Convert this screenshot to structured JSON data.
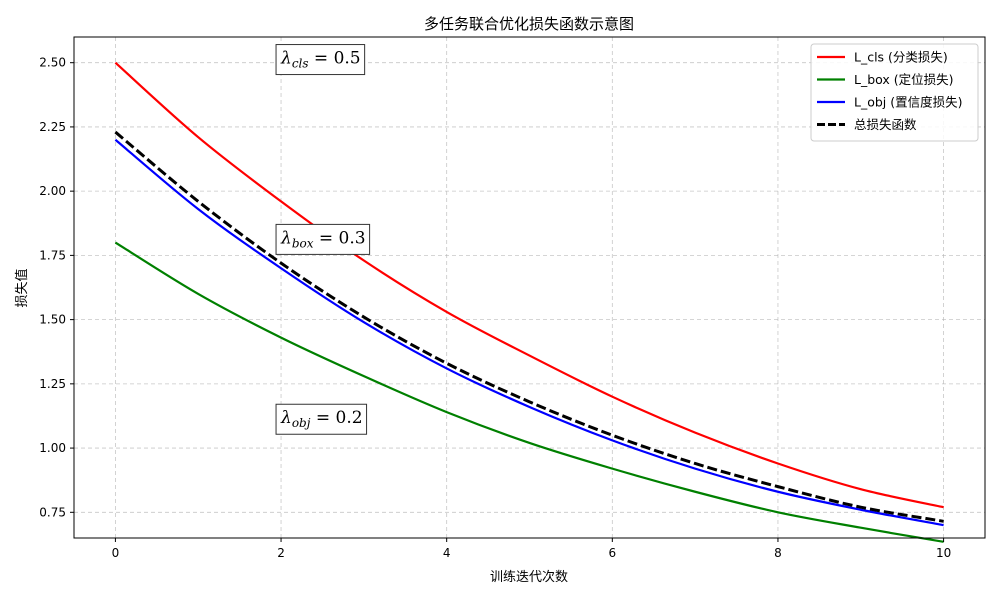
{
  "chart_data": {
    "type": "line",
    "title": "多任务联合优化损失函数示意图",
    "xlabel": "训练迭代次数",
    "ylabel": "损失值",
    "xlim": [
      -0.5,
      10.5
    ],
    "ylim": [
      0.65,
      2.6
    ],
    "x_ticks": [
      "0",
      "2",
      "4",
      "6",
      "8",
      "10"
    ],
    "x_tick_values": [
      0,
      2,
      4,
      6,
      8,
      10
    ],
    "y_ticks": [
      "0.75",
      "1.00",
      "1.25",
      "1.50",
      "1.75",
      "2.00",
      "2.25",
      "2.50"
    ],
    "y_tick_values": [
      0.75,
      1.0,
      1.25,
      1.5,
      1.75,
      2.0,
      2.25,
      2.5
    ],
    "grid": true,
    "legend_position": "top-right",
    "x": [
      0,
      1,
      2,
      3,
      4,
      5,
      6,
      7,
      8,
      9,
      10
    ],
    "series": [
      {
        "name": "L_cls (分类损失)",
        "color": "#ff0000",
        "style": "solid",
        "values": [
          2.5,
          2.21,
          1.96,
          1.73,
          1.53,
          1.36,
          1.2,
          1.06,
          0.94,
          0.84,
          0.77
        ]
      },
      {
        "name": "L_box (定位损失)",
        "color": "#008000",
        "style": "solid",
        "values": [
          1.8,
          1.6,
          1.43,
          1.28,
          1.14,
          1.02,
          0.92,
          0.83,
          0.75,
          0.69,
          0.635
        ]
      },
      {
        "name": "L_obj (置信度损失)",
        "color": "#0000ff",
        "style": "solid",
        "values": [
          2.2,
          1.93,
          1.7,
          1.49,
          1.31,
          1.16,
          1.03,
          0.92,
          0.83,
          0.76,
          0.7
        ]
      },
      {
        "name": "总损失函数",
        "color": "#000000",
        "style": "dashed",
        "values": [
          2.23,
          1.96,
          1.72,
          1.51,
          1.33,
          1.18,
          1.05,
          0.94,
          0.85,
          0.77,
          0.715
        ]
      }
    ],
    "annotations": [
      {
        "lambda": "λ",
        "subscript": "cls",
        "rest": " = 0.5",
        "x": 2.0,
        "y": 2.52
      },
      {
        "lambda": "λ",
        "subscript": "box",
        "rest": " = 0.3",
        "x": 2.0,
        "y": 1.82
      },
      {
        "lambda": "λ",
        "subscript": "obj",
        "rest": " = 0.2",
        "x": 2.0,
        "y": 1.12
      }
    ]
  }
}
